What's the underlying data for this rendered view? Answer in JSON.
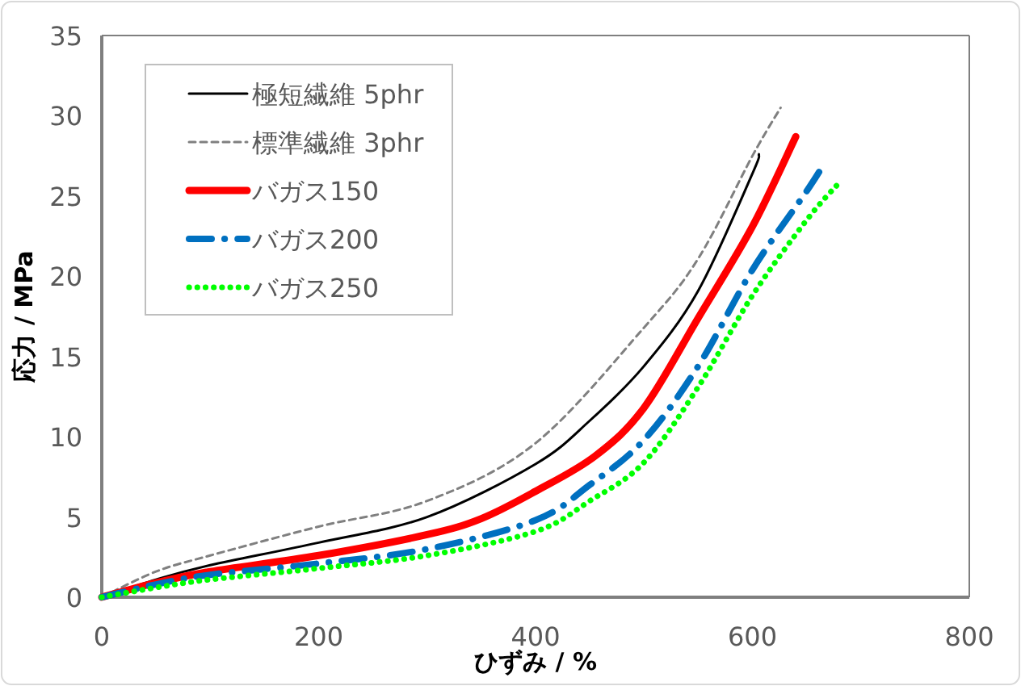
{
  "chart_data": {
    "type": "line",
    "xlabel": "ひずみ / %",
    "ylabel": "応力 / MPa",
    "xlim": [
      0,
      800
    ],
    "xticks": [
      0,
      200,
      400,
      600,
      800
    ],
    "ylim": [
      0,
      35
    ],
    "yticks": [
      0,
      5,
      10,
      15,
      20,
      25,
      30,
      35
    ],
    "grid": false,
    "legend": "top left",
    "marker": "none",
    "series": [
      {
        "name": "極短繊維 5phr",
        "color": "#000000",
        "line_style": "solid",
        "x": [
          0,
          50,
          100,
          200,
          300,
          400,
          450,
          500,
          550,
          600,
          606
        ],
        "values": [
          0,
          1.1,
          2.0,
          3.4,
          5.0,
          8.3,
          11.0,
          14.4,
          19.1,
          26.4,
          27.6
        ]
      },
      {
        "name": "標準繊維 3phr",
        "color": "#808080",
        "line_style": "dashed",
        "x": [
          0,
          50,
          100,
          200,
          300,
          400,
          500,
          550,
          600,
          626
        ],
        "values": [
          0,
          1.6,
          2.6,
          4.4,
          6.0,
          9.6,
          16.8,
          21.1,
          27.5,
          30.5
        ]
      },
      {
        "name": "バガス150",
        "color": "#ff0000",
        "line_style": "solid",
        "x": [
          0,
          50,
          100,
          200,
          300,
          350,
          400,
          455,
          500,
          550,
          600,
          640
        ],
        "values": [
          0,
          0.9,
          1.6,
          2.6,
          3.9,
          4.9,
          6.6,
          8.8,
          11.8,
          17.4,
          23.1,
          28.7
        ]
      },
      {
        "name": "バガス200",
        "color": "#0070c0",
        "line_style": "dashdot",
        "x": [
          0,
          50,
          100,
          200,
          300,
          400,
          450,
          500,
          550,
          600,
          650,
          666
        ],
        "values": [
          0,
          0.8,
          1.4,
          2.1,
          3.0,
          4.8,
          7.0,
          9.8,
          14.4,
          20.4,
          25.3,
          27.0
        ]
      },
      {
        "name": "バガス250",
        "color": "#00ff00",
        "line_style": "dotted",
        "x": [
          0,
          50,
          100,
          200,
          300,
          400,
          450,
          500,
          550,
          600,
          650,
          681
        ],
        "values": [
          0,
          0.6,
          1.1,
          1.8,
          2.6,
          4.1,
          6.0,
          8.4,
          13.1,
          18.8,
          23.5,
          25.9
        ]
      }
    ]
  }
}
